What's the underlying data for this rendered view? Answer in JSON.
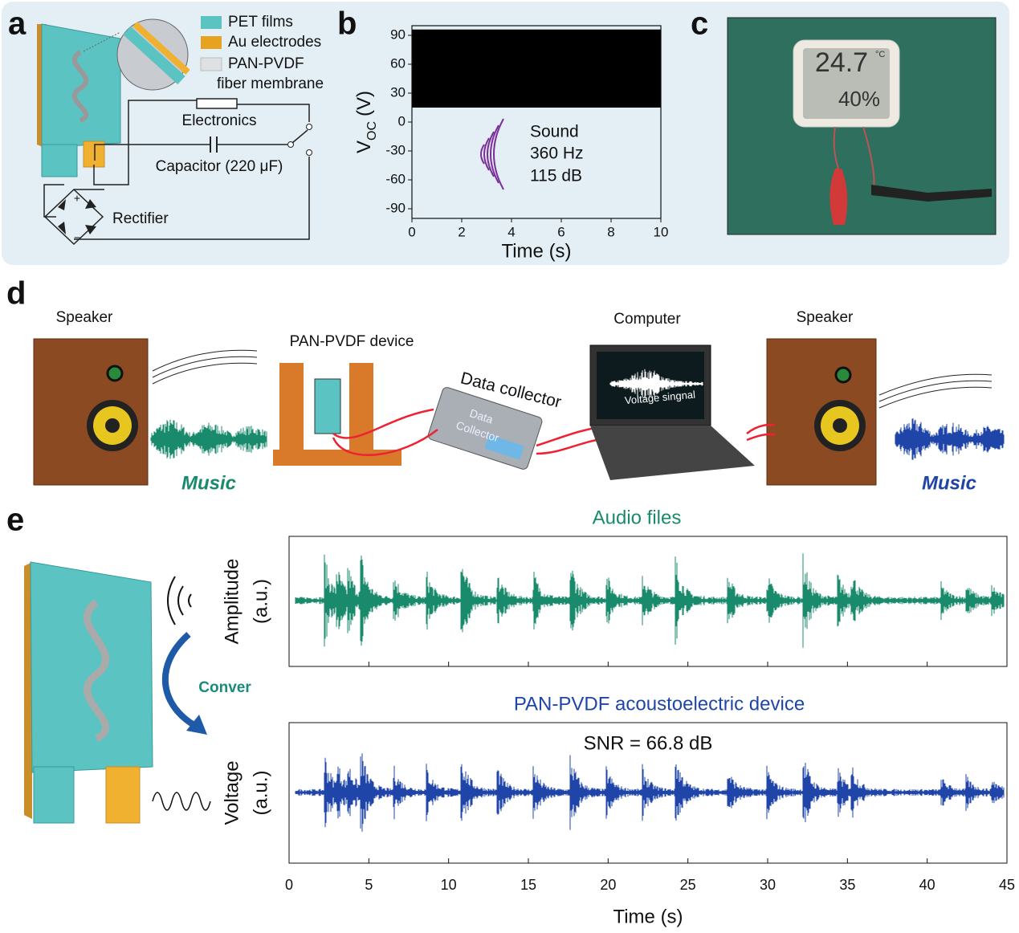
{
  "panel_labels": {
    "a": "a",
    "b": "b",
    "c": "c",
    "d": "d",
    "e": "e"
  },
  "a": {
    "legend": [
      "PET films",
      "Au electrodes",
      "PAN-PVDF",
      "fiber membrane"
    ],
    "electronics": "Electronics",
    "capacitor": "Capacitor (220 μF)",
    "rectifier": "Rectifier",
    "plus": "+",
    "minus": "−"
  },
  "b": {
    "chart_data": {
      "type": "area",
      "y_label": "V",
      "y_label_sub": "OC",
      "y_label_unit": "(V)",
      "x_label": "Time (s)",
      "x": [
        0,
        10
      ],
      "upper": [
        96,
        96
      ],
      "lower": [
        15,
        15
      ],
      "color": "#000000",
      "xlim": [
        0,
        10
      ],
      "xticks": [
        0,
        2,
        4,
        6,
        8,
        10
      ],
      "ylim": [
        -100,
        100
      ],
      "yticks": [
        -90,
        -60,
        -30,
        0,
        30,
        60,
        90
      ]
    },
    "annotation": [
      "Sound",
      "360 Hz",
      "115 dB"
    ]
  },
  "c": {
    "display": {
      "temperature": "24.7",
      "unit": "°C",
      "humidity": "40%"
    }
  },
  "d": {
    "speaker_left": "Speaker",
    "music_left": "Music",
    "device": "PAN-PVDF device",
    "collector": "Data collector",
    "collector_face": [
      "Data",
      "Collector"
    ],
    "computer": "Computer",
    "screen": "Voltage singnal",
    "speaker_right": "Speaker",
    "music_right": "Music"
  },
  "e": {
    "convert": "Conver",
    "chart_data": [
      {
        "type": "waveform",
        "title": "Audio files",
        "y_label": [
          "Amplitude",
          "(a.u.)"
        ],
        "color": "#1a8a6c",
        "xlim": [
          0,
          45
        ]
      },
      {
        "type": "waveform",
        "title": "PAN-PVDF acoustoelectric device",
        "y_label": [
          "Voltage",
          "(a.u.)"
        ],
        "color": "#1f45a8",
        "annotation": "SNR = 66.8 dB",
        "xlim": [
          0,
          45
        ],
        "xticks": [
          0,
          5,
          10,
          15,
          20,
          25,
          30,
          35,
          40,
          45
        ],
        "x_label": "Time (s)"
      }
    ]
  }
}
